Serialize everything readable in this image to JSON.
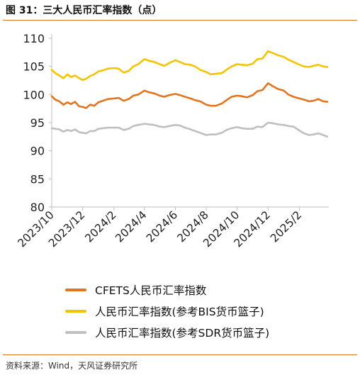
{
  "figure": {
    "title": "图 31：三大人民币汇率指数（点）",
    "source": "资料来源：Wind，天风证券研究所"
  },
  "colors": {
    "accent": "#e2751f",
    "axis": "#bfbfbf"
  },
  "chart_data": {
    "type": "line",
    "title": "",
    "xlabel": "",
    "ylabel": "",
    "ylim": [
      80,
      110
    ],
    "yticks": [
      "80",
      "85",
      "90",
      "95",
      "100",
      "105",
      "110"
    ],
    "xlim": [
      "2023-10-01",
      "2025-03-31"
    ],
    "xticks": [
      {
        "date": "2023-10-01",
        "label": "2023/10"
      },
      {
        "date": "2023-12-01",
        "label": "2023/12"
      },
      {
        "date": "2024-02-01",
        "label": "2024/2"
      },
      {
        "date": "2024-04-01",
        "label": "2024/4"
      },
      {
        "date": "2024-06-01",
        "label": "2024/6"
      },
      {
        "date": "2024-08-01",
        "label": "2024/8"
      },
      {
        "date": "2024-10-01",
        "label": "2024/10"
      },
      {
        "date": "2024-12-01",
        "label": "2024/12"
      },
      {
        "date": "2025-02-01",
        "label": "2025/2"
      }
    ],
    "grid": false,
    "legend": "bottom",
    "series": [
      {
        "name": "CFETS人民币汇率指数",
        "color": "#e2751f",
        "points": [
          [
            "2023-10-01",
            99.7
          ],
          [
            "2023-10-08",
            99.1
          ],
          [
            "2023-10-16",
            98.8
          ],
          [
            "2023-10-24",
            98.2
          ],
          [
            "2023-11-01",
            98.6
          ],
          [
            "2023-11-08",
            98.3
          ],
          [
            "2023-11-16",
            98.7
          ],
          [
            "2023-11-24",
            97.9
          ],
          [
            "2023-12-01",
            97.8
          ],
          [
            "2023-12-08",
            97.6
          ],
          [
            "2023-12-16",
            98.2
          ],
          [
            "2023-12-24",
            98.0
          ],
          [
            "2024-01-01",
            98.6
          ],
          [
            "2024-01-10",
            98.9
          ],
          [
            "2024-01-20",
            99.2
          ],
          [
            "2024-02-01",
            99.3
          ],
          [
            "2024-02-10",
            99.4
          ],
          [
            "2024-02-20",
            98.9
          ],
          [
            "2024-03-01",
            99.2
          ],
          [
            "2024-03-10",
            99.8
          ],
          [
            "2024-03-20",
            100.0
          ],
          [
            "2024-04-01",
            100.7
          ],
          [
            "2024-04-10",
            100.4
          ],
          [
            "2024-04-20",
            100.2
          ],
          [
            "2024-05-01",
            99.8
          ],
          [
            "2024-05-10",
            99.6
          ],
          [
            "2024-05-20",
            99.9
          ],
          [
            "2024-06-01",
            100.1
          ],
          [
            "2024-06-10",
            99.9
          ],
          [
            "2024-06-20",
            99.6
          ],
          [
            "2024-07-01",
            99.3
          ],
          [
            "2024-07-10",
            99.0
          ],
          [
            "2024-07-20",
            98.8
          ],
          [
            "2024-08-01",
            98.2
          ],
          [
            "2024-08-10",
            98.0
          ],
          [
            "2024-08-20",
            98.0
          ],
          [
            "2024-09-01",
            98.4
          ],
          [
            "2024-09-10",
            99.0
          ],
          [
            "2024-09-20",
            99.6
          ],
          [
            "2024-10-01",
            99.8
          ],
          [
            "2024-10-10",
            99.7
          ],
          [
            "2024-10-20",
            99.5
          ],
          [
            "2024-11-01",
            99.9
          ],
          [
            "2024-11-10",
            100.6
          ],
          [
            "2024-11-20",
            100.8
          ],
          [
            "2024-12-01",
            102.0
          ],
          [
            "2024-12-10",
            101.5
          ],
          [
            "2024-12-20",
            101.0
          ],
          [
            "2025-01-01",
            100.7
          ],
          [
            "2025-01-10",
            100.0
          ],
          [
            "2025-01-20",
            99.6
          ],
          [
            "2025-02-01",
            99.3
          ],
          [
            "2025-02-10",
            99.1
          ],
          [
            "2025-02-20",
            98.8
          ],
          [
            "2025-03-01",
            98.9
          ],
          [
            "2025-03-10",
            99.2
          ],
          [
            "2025-03-20",
            98.8
          ],
          [
            "2025-03-28",
            98.7
          ]
        ]
      },
      {
        "name": "人民币汇率指数(参考BIS货币篮子)",
        "color": "#f5c400",
        "points": [
          [
            "2023-10-01",
            104.4
          ],
          [
            "2023-10-08",
            103.8
          ],
          [
            "2023-10-16",
            103.4
          ],
          [
            "2023-10-24",
            102.9
          ],
          [
            "2023-11-01",
            103.6
          ],
          [
            "2023-11-08",
            103.1
          ],
          [
            "2023-11-16",
            103.4
          ],
          [
            "2023-11-24",
            102.9
          ],
          [
            "2023-12-01",
            102.6
          ],
          [
            "2023-12-08",
            102.8
          ],
          [
            "2023-12-16",
            103.3
          ],
          [
            "2023-12-24",
            103.6
          ],
          [
            "2024-01-01",
            104.1
          ],
          [
            "2024-01-10",
            104.3
          ],
          [
            "2024-01-20",
            104.6
          ],
          [
            "2024-02-01",
            104.7
          ],
          [
            "2024-02-10",
            104.6
          ],
          [
            "2024-02-20",
            103.9
          ],
          [
            "2024-03-01",
            104.2
          ],
          [
            "2024-03-10",
            105.0
          ],
          [
            "2024-03-20",
            105.4
          ],
          [
            "2024-04-01",
            106.3
          ],
          [
            "2024-04-10",
            106.0
          ],
          [
            "2024-04-20",
            105.8
          ],
          [
            "2024-05-01",
            105.4
          ],
          [
            "2024-05-10",
            105.1
          ],
          [
            "2024-05-20",
            105.6
          ],
          [
            "2024-06-01",
            106.1
          ],
          [
            "2024-06-10",
            105.8
          ],
          [
            "2024-06-20",
            105.4
          ],
          [
            "2024-07-01",
            105.3
          ],
          [
            "2024-07-10",
            105.0
          ],
          [
            "2024-07-20",
            104.4
          ],
          [
            "2024-08-01",
            104.0
          ],
          [
            "2024-08-10",
            103.6
          ],
          [
            "2024-08-20",
            103.7
          ],
          [
            "2024-09-01",
            103.8
          ],
          [
            "2024-09-10",
            104.4
          ],
          [
            "2024-09-20",
            105.0
          ],
          [
            "2024-10-01",
            105.4
          ],
          [
            "2024-10-10",
            105.3
          ],
          [
            "2024-10-20",
            105.2
          ],
          [
            "2024-11-01",
            105.5
          ],
          [
            "2024-11-10",
            106.3
          ],
          [
            "2024-11-20",
            106.4
          ],
          [
            "2024-12-01",
            107.7
          ],
          [
            "2024-12-10",
            107.4
          ],
          [
            "2024-12-20",
            107.0
          ],
          [
            "2025-01-01",
            106.7
          ],
          [
            "2025-01-10",
            106.2
          ],
          [
            "2025-01-20",
            105.8
          ],
          [
            "2025-02-01",
            105.3
          ],
          [
            "2025-02-10",
            105.0
          ],
          [
            "2025-02-20",
            104.9
          ],
          [
            "2025-03-01",
            105.1
          ],
          [
            "2025-03-10",
            105.3
          ],
          [
            "2025-03-20",
            105.0
          ],
          [
            "2025-03-28",
            104.9
          ]
        ]
      },
      {
        "name": "人民币汇率指数(参考SDR货币篮子)",
        "color": "#bfbfbf",
        "points": [
          [
            "2023-10-01",
            94.0
          ],
          [
            "2023-10-08",
            93.9
          ],
          [
            "2023-10-16",
            93.8
          ],
          [
            "2023-10-24",
            93.4
          ],
          [
            "2023-11-01",
            93.7
          ],
          [
            "2023-11-08",
            93.5
          ],
          [
            "2023-11-16",
            93.8
          ],
          [
            "2023-11-24",
            93.3
          ],
          [
            "2023-12-01",
            93.2
          ],
          [
            "2023-12-08",
            93.1
          ],
          [
            "2023-12-16",
            93.5
          ],
          [
            "2023-12-24",
            93.5
          ],
          [
            "2024-01-01",
            93.9
          ],
          [
            "2024-01-10",
            94.0
          ],
          [
            "2024-01-20",
            94.1
          ],
          [
            "2024-02-01",
            94.1
          ],
          [
            "2024-02-10",
            94.1
          ],
          [
            "2024-02-20",
            93.7
          ],
          [
            "2024-03-01",
            93.9
          ],
          [
            "2024-03-10",
            94.4
          ],
          [
            "2024-03-20",
            94.6
          ],
          [
            "2024-04-01",
            94.8
          ],
          [
            "2024-04-10",
            94.7
          ],
          [
            "2024-04-20",
            94.6
          ],
          [
            "2024-05-01",
            94.3
          ],
          [
            "2024-05-10",
            94.2
          ],
          [
            "2024-05-20",
            94.4
          ],
          [
            "2024-06-01",
            94.6
          ],
          [
            "2024-06-10",
            94.5
          ],
          [
            "2024-06-20",
            94.1
          ],
          [
            "2024-07-01",
            93.8
          ],
          [
            "2024-07-10",
            93.5
          ],
          [
            "2024-07-20",
            93.2
          ],
          [
            "2024-08-01",
            92.8
          ],
          [
            "2024-08-10",
            92.9
          ],
          [
            "2024-08-20",
            92.9
          ],
          [
            "2024-09-01",
            93.2
          ],
          [
            "2024-09-10",
            93.7
          ],
          [
            "2024-09-20",
            94.0
          ],
          [
            "2024-10-01",
            94.2
          ],
          [
            "2024-10-10",
            94.0
          ],
          [
            "2024-10-20",
            93.9
          ],
          [
            "2024-11-01",
            93.9
          ],
          [
            "2024-11-10",
            94.3
          ],
          [
            "2024-11-20",
            94.2
          ],
          [
            "2024-12-01",
            95.0
          ],
          [
            "2024-12-10",
            94.9
          ],
          [
            "2024-12-20",
            94.7
          ],
          [
            "2025-01-01",
            94.6
          ],
          [
            "2025-01-10",
            94.4
          ],
          [
            "2025-01-20",
            94.3
          ],
          [
            "2025-02-01",
            93.6
          ],
          [
            "2025-02-10",
            93.1
          ],
          [
            "2025-02-20",
            92.8
          ],
          [
            "2025-03-01",
            92.9
          ],
          [
            "2025-03-10",
            93.1
          ],
          [
            "2025-03-20",
            92.8
          ],
          [
            "2025-03-28",
            92.5
          ]
        ]
      }
    ]
  }
}
